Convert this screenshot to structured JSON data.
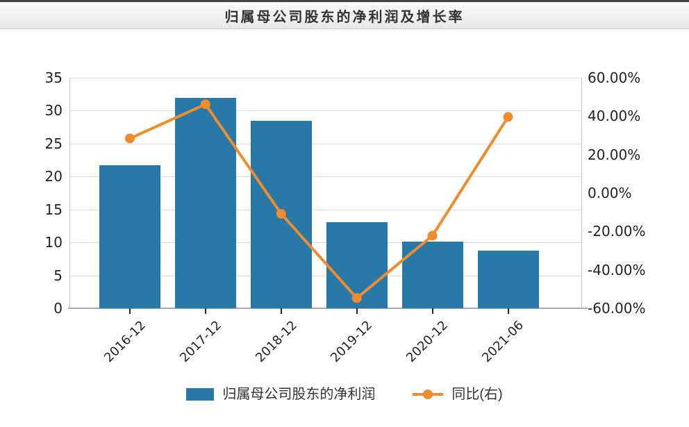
{
  "header": {
    "title": "归属母公司股东的净利润及增长率"
  },
  "chart_data": {
    "type": "bar+line",
    "title": "归属母公司股东的净利润及增长率",
    "categories": [
      "2016-12",
      "2017-12",
      "2018-12",
      "2019-12",
      "2020-12",
      "2021-06"
    ],
    "series": [
      {
        "name": "归属母公司股东的净利润",
        "type": "bar",
        "y_axis": "left",
        "color": "#2878a8",
        "values": [
          21.7,
          31.9,
          28.5,
          13.1,
          10.1,
          8.8
        ]
      },
      {
        "name": "同比(右)",
        "type": "line",
        "y_axis": "right",
        "color": "#f18c2d",
        "values": [
          28.4,
          46.2,
          -10.8,
          -54.7,
          -22.2,
          39.6
        ]
      }
    ],
    "left_axis": {
      "range": [
        0,
        35
      ],
      "step": 5,
      "tick_labels": [
        "35",
        "30",
        "25",
        "20",
        "15",
        "10",
        "5",
        "0"
      ]
    },
    "right_axis": {
      "range": [
        -60,
        60
      ],
      "step": 20,
      "tick_labels": [
        "60.00%",
        "40.00%",
        "20.00%",
        "0.00%",
        "-20.00%",
        "-40.00%",
        "-60.00%"
      ]
    },
    "grid": true,
    "legend_position": "bottom"
  },
  "legend": {
    "items": [
      {
        "label": "归属母公司股东的净利润",
        "marker": "rect",
        "color": "#2878a8"
      },
      {
        "label": "同比(右)",
        "marker": "line-dot",
        "color": "#f18c2d"
      }
    ]
  },
  "colors": {
    "bar": "#2878a8",
    "line": "#f18c2d",
    "axis_text": "#222222",
    "grid_line": "#dcdcdc",
    "axis_line": "#a8a8a8",
    "title_text": "#333333"
  }
}
